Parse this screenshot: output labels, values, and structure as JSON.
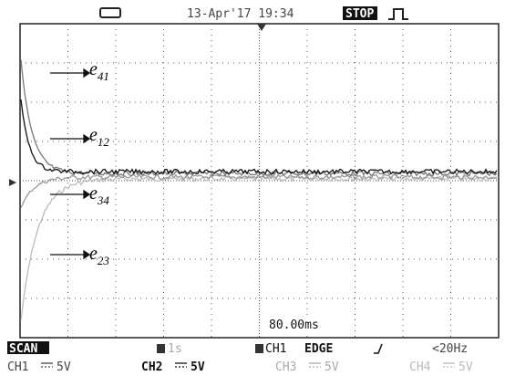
{
  "header": {
    "datetime": "13-Apr'17 19:34",
    "status": "STOP"
  },
  "screen": {
    "timebase": "80.00ms"
  },
  "labels": [
    {
      "base": "e",
      "sub": "41"
    },
    {
      "base": "e",
      "sub": "12"
    },
    {
      "base": "e",
      "sub": "34"
    },
    {
      "base": "e",
      "sub": "23"
    }
  ],
  "status_bar": {
    "mode": "SCAN",
    "main_scale": "1s",
    "trigger_source": "CH1",
    "trigger_type": "EDGE",
    "trigger_freq": "<20Hz"
  },
  "channels": [
    {
      "name": "CH1",
      "scale": "5V"
    },
    {
      "name": "CH2",
      "scale": "5V"
    },
    {
      "name": "CH3",
      "scale": "5V"
    },
    {
      "name": "CH4",
      "scale": "5V"
    }
  ]
}
